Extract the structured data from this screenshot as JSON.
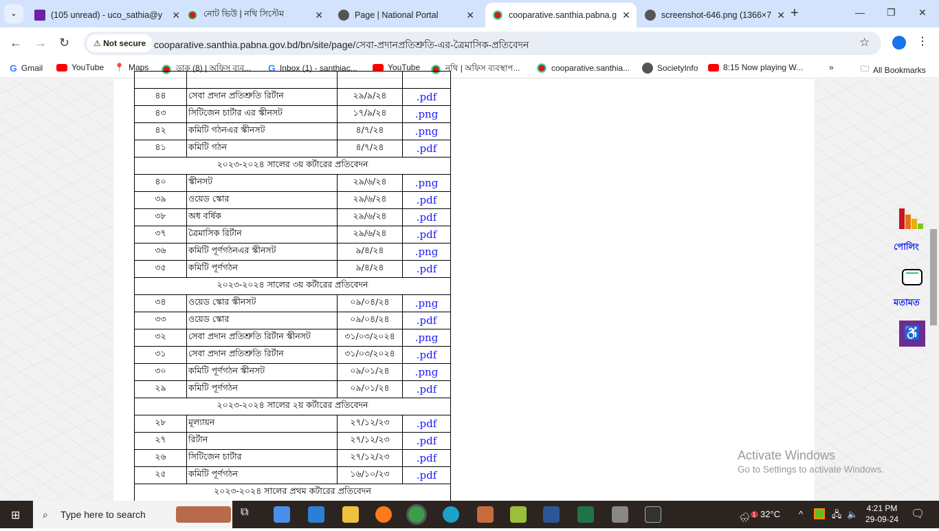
{
  "browser": {
    "tabs": [
      {
        "title": "(105 unread) - uco_sathia@y",
        "icon": "mail-icon"
      },
      {
        "title": "নোট ভিউ | নথি সিস্টেম",
        "icon": "bd-emblem-icon"
      },
      {
        "title": "Page | National Portal",
        "icon": "globe-icon"
      },
      {
        "title": "cooparative.santhia.pabna.g",
        "icon": "bd-emblem-icon",
        "active": true
      },
      {
        "title": "screenshot-646.png (1366×7",
        "icon": "globe-icon"
      }
    ],
    "security": "Not secure",
    "url": "cooparative.santhia.pabna.gov.bd/bn/site/page/সেবা-প্রদানপ্রতিশ্রুতি-এর-ত্রৈমাসিক-প্রতিবেদন",
    "bookmarks": [
      "Gmail",
      "YouTube",
      "Maps",
      "ডাক (8) | অফিস ব্যব...",
      "Inbox (1) - santhiac...",
      "YouTube",
      "নথি | অফিস ব্যবস্থাপ...",
      "cooparative.santhia...",
      "SocietyInfo",
      "8:15 Now playing W..."
    ],
    "overflow": "»",
    "all_bookmarks": "All Bookmarks"
  },
  "table": {
    "sections": [
      {
        "header": null,
        "rows": [
          [
            "৪৪",
            "সেবা প্রদান প্রতিশ্রুতি রির্টান",
            "২৯/৯/২৪",
            ".pdf"
          ],
          [
            "৪৩",
            "সিটিজেন চার্টার এর স্কীনসট",
            "১৭/৯/২৪",
            ".png"
          ],
          [
            "৪২",
            "কমিটি গঠনএর স্কীনসট",
            "৪/৭/২৪",
            ".png"
          ],
          [
            "৪১",
            "কমিটি গঠন",
            "৪/৭/২৪",
            ".pdf"
          ]
        ]
      },
      {
        "header": "২০২৩-২০২৪ সালের ৩য় কর্টারের প্রতিবেদন",
        "rows": [
          [
            "৪০",
            "স্কীনসট",
            "২৯/৬/২৪",
            ".png"
          ],
          [
            "৩৯",
            "ওয়েড স্কোর",
            "২৯/৬/২৪",
            ".pdf"
          ],
          [
            "৩৮",
            "অধ বর্ষিক",
            "২৯/৬/২৪",
            ".pdf"
          ],
          [
            "৩৭",
            "ত্রৈমাসিক রির্টান",
            "২৯/৬/২৪",
            ".pdf"
          ],
          [
            "৩৬",
            "কমিটি পূর্ণগঠনএর স্কীনসট",
            "৯/৪/২৪",
            ".png"
          ],
          [
            "৩৫",
            "কমিটি পূর্ণগঠন",
            "৯/৪/২৪",
            ".pdf"
          ]
        ]
      },
      {
        "header": "২০২৩-২০২৪ সালের ৩য় কর্টারের প্রতিবেদন",
        "rows": [
          [
            "৩৪",
            "ওয়েড স্কোর স্কীনসট",
            "০৯/০৪/২৪",
            ".png"
          ],
          [
            "৩৩",
            "ওয়েড স্কোর",
            "০৯/০৪/২৪",
            ".pdf"
          ],
          [
            "৩২",
            "সেবা প্রদান প্রতিশ্রুতি রির্টান স্কীনসট",
            "৩১/০৩/২০২৪",
            ".png"
          ],
          [
            "৩১",
            "সেবা প্রদান প্রতিশ্রুতি রির্টান",
            "৩১/০৩/২০২৪",
            ".pdf"
          ],
          [
            "৩০",
            "কমিটি পূর্ণগঠন  স্কীনসট",
            "০৯/০১/২৪",
            ".png"
          ],
          [
            "২৯",
            "কমিটি পূর্ণগঠন",
            "০৯/০১/২৪",
            ".pdf"
          ]
        ]
      },
      {
        "header": "২০২৩-২০২৪ সালের ২য় কর্টারের প্রতিবেদন",
        "rows": [
          [
            "২৮",
            "মূল্যায়ন",
            "২৭/১২/২৩",
            ".pdf"
          ],
          [
            "২৭",
            "রির্টান",
            "২৭/১২/২৩",
            ".pdf"
          ],
          [
            "২৬",
            "সিটিজেন চার্টার",
            "২৭/১২/২৩",
            ".pdf"
          ],
          [
            "২৫",
            "কমিটি পূর্ণগঠন",
            "১৬/১০/২৩",
            ".pdf"
          ]
        ]
      },
      {
        "header": "২০২৩-২০২৪ সালের প্রথম কর্টারের প্রতিবেদন",
        "rows": []
      }
    ]
  },
  "side": {
    "poll": "পোলিং",
    "feedback": "মতামত"
  },
  "watermark": {
    "line1": "Activate Windows",
    "line2": "Go to Settings to activate Windows."
  },
  "taskbar": {
    "search": "Type here to search",
    "temp": "32°C",
    "weather_badge": "1",
    "time": "4:21 PM",
    "date": "29-09-24"
  }
}
